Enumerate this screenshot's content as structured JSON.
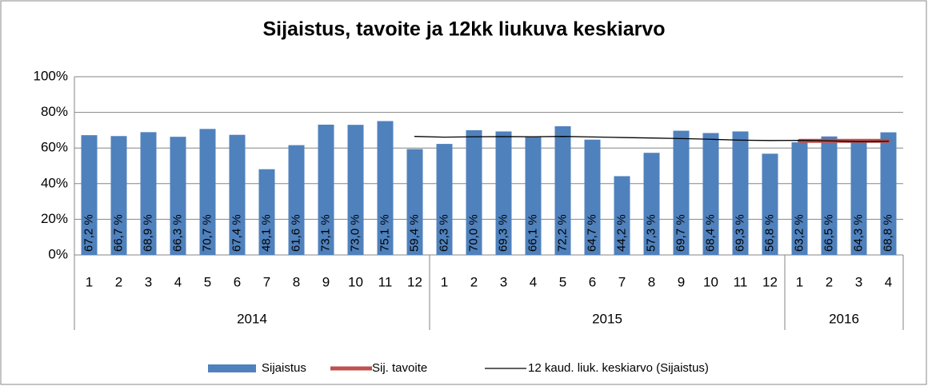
{
  "chart_data": {
    "type": "bar",
    "title": "Sijaistus, tavoite ja 12kk liukuva keskiarvo",
    "categories": [
      "1",
      "2",
      "3",
      "4",
      "5",
      "6",
      "7",
      "8",
      "9",
      "10",
      "11",
      "12",
      "1",
      "2",
      "3",
      "4",
      "5",
      "6",
      "7",
      "8",
      "9",
      "10",
      "11",
      "12",
      "1",
      "2",
      "3",
      "4"
    ],
    "groups": [
      {
        "label": "2014",
        "count": 12
      },
      {
        "label": "2015",
        "count": 12
      },
      {
        "label": "2016",
        "count": 4
      }
    ],
    "series": [
      {
        "name": "Sijaistus",
        "type": "bar",
        "color": "#4f81bd",
        "values": [
          67.2,
          66.7,
          68.9,
          66.3,
          70.7,
          67.4,
          48.1,
          61.6,
          73.1,
          73.0,
          75.1,
          59.4,
          62.3,
          70.0,
          69.3,
          66.1,
          72.2,
          64.7,
          44.2,
          57.3,
          69.7,
          68.4,
          69.3,
          56.8,
          63.2,
          66.5,
          64.3,
          68.8
        ],
        "value_labels": [
          "67,2 %",
          "66,7 %",
          "68,9 %",
          "66,3 %",
          "70,7 %",
          "67,4 %",
          "48,1 %",
          "61,6 %",
          "73,1 %",
          "73,0 %",
          "75,1 %",
          "59,4 %",
          "62,3 %",
          "70,0 %",
          "69,3 %",
          "66,1 %",
          "72,2 %",
          "64,7 %",
          "44,2 %",
          "57,3 %",
          "69,7 %",
          "68,4 %",
          "69,3 %",
          "56,8 %",
          "63,2 %",
          "66,5 %",
          "64,3 %",
          "68,8 %"
        ]
      },
      {
        "name": "Sij. tavoite",
        "type": "line",
        "color": "#c0504d",
        "width": 5,
        "values": [
          null,
          null,
          null,
          null,
          null,
          null,
          null,
          null,
          null,
          null,
          null,
          null,
          null,
          null,
          null,
          null,
          null,
          null,
          null,
          null,
          null,
          null,
          null,
          null,
          64,
          64,
          64,
          64
        ]
      },
      {
        "name": "12 kaud. liuk. keskiarvo (Sijaistus)",
        "type": "line",
        "color": "#000000",
        "width": 1.3,
        "values": [
          null,
          null,
          null,
          null,
          null,
          null,
          null,
          null,
          null,
          null,
          null,
          66.5,
          66.1,
          66.3,
          66.4,
          66.3,
          66.5,
          66.2,
          65.9,
          65.6,
          65.3,
          64.9,
          64.4,
          64.2,
          64.3,
          64.0,
          63.6,
          63.8
        ]
      }
    ],
    "ylim": [
      0,
      100
    ],
    "yticks": [
      {
        "value": 0,
        "label": "0%"
      },
      {
        "value": 20,
        "label": "20%"
      },
      {
        "value": 40,
        "label": "40%"
      },
      {
        "value": 60,
        "label": "60%"
      },
      {
        "value": 80,
        "label": "80%"
      },
      {
        "value": 100,
        "label": "100%"
      }
    ],
    "grid": true,
    "legend": "bottom"
  }
}
